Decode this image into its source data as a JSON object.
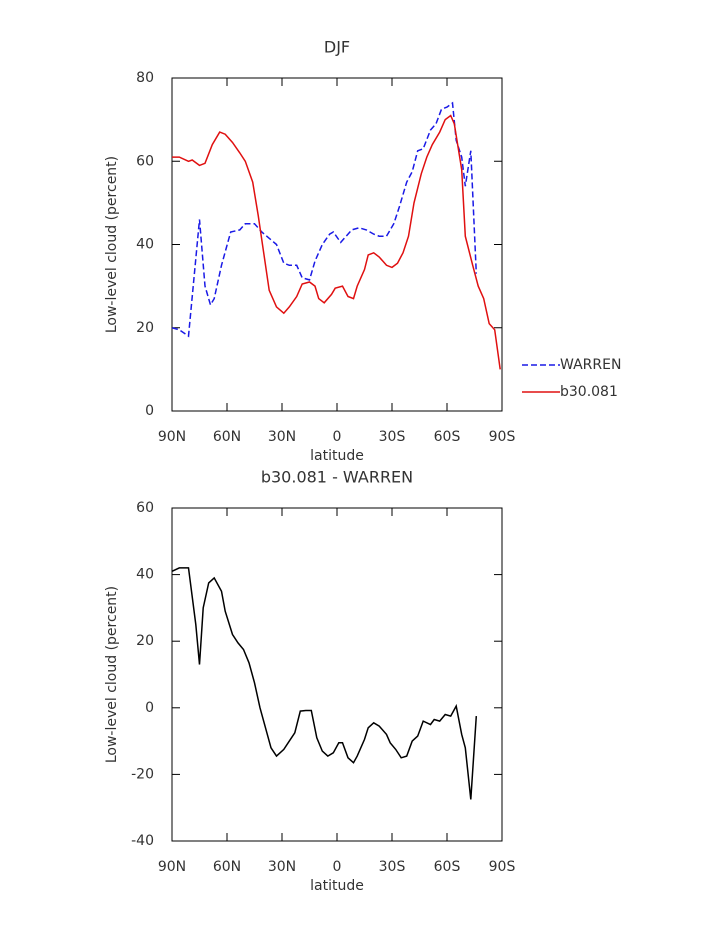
{
  "chart_data": [
    {
      "type": "line",
      "title": "DJF",
      "xlabel": "latitude",
      "ylabel": "Low-level cloud (percent)",
      "xlim": [
        90,
        -90
      ],
      "xticks": [
        {
          "value": 90,
          "label": "90N"
        },
        {
          "value": 60,
          "label": "60N"
        },
        {
          "value": 30,
          "label": "30N"
        },
        0,
        {
          "value": -30,
          "label": "30S"
        },
        {
          "value": -60,
          "label": "60S"
        },
        {
          "value": -90,
          "label": "90S"
        }
      ],
      "ylim": [
        0,
        80
      ],
      "yticks": [
        0,
        20,
        40,
        60,
        80
      ],
      "grid": false,
      "legend": "right",
      "series": [
        {
          "name": "WARREN",
          "color": "#1a1ae6",
          "style": "dashed",
          "x": [
            90,
            86,
            81,
            75,
            72,
            69,
            67,
            63,
            58,
            53,
            50,
            45,
            41,
            37,
            33,
            29,
            26,
            22,
            19,
            15,
            12,
            8,
            4,
            2,
            -2,
            -4,
            -8,
            -12,
            -16,
            -20,
            -23,
            -27,
            -31,
            -34,
            -38,
            -41,
            -44,
            -47,
            -51,
            -54,
            -57,
            -60,
            -63,
            -65,
            -68,
            -70,
            -73,
            -76
          ],
          "values": [
            20,
            19.5,
            18,
            46,
            30,
            25.5,
            27,
            35,
            43,
            43.5,
            45,
            45,
            43,
            41.5,
            40,
            35.5,
            35,
            35,
            32,
            31.5,
            36,
            40,
            42.5,
            43,
            40.5,
            41.5,
            43.5,
            44,
            43.5,
            42.5,
            42,
            42,
            45,
            49,
            55,
            57.5,
            62.5,
            63,
            67.5,
            69,
            72.5,
            73,
            74,
            65,
            61,
            54,
            62.5,
            33
          ]
        },
        {
          "name": "b30.081",
          "color": "#e01010",
          "style": "solid",
          "x": [
            90,
            86,
            81,
            79,
            75,
            72,
            68,
            64,
            61,
            57,
            53,
            50,
            46,
            43,
            40,
            37,
            33,
            29,
            26,
            22,
            19,
            15,
            12,
            10,
            7,
            3,
            1,
            -3,
            -6,
            -9,
            -11,
            -15,
            -17,
            -20,
            -23,
            -27,
            -30,
            -33,
            -36,
            -39,
            -42,
            -46,
            -49,
            -52,
            -56,
            -59,
            -62,
            -64,
            -68,
            -70,
            -74,
            -77,
            -80,
            -83,
            -86,
            -89
          ],
          "values": [
            61,
            61,
            60,
            60.3,
            59,
            59.5,
            64,
            67,
            66.5,
            64.5,
            62,
            60,
            55,
            47,
            38,
            29,
            25,
            23.5,
            25,
            27.5,
            30.5,
            31,
            30,
            27,
            26,
            28,
            29.5,
            30,
            27.5,
            27,
            30,
            34,
            37.5,
            38,
            37,
            35,
            34.5,
            35.5,
            38,
            42,
            50,
            57,
            61,
            64,
            67,
            70,
            71,
            69,
            58,
            42,
            35,
            30,
            27,
            21,
            19.5,
            10
          ]
        }
      ]
    },
    {
      "type": "line",
      "title": "b30.081 - WARREN",
      "xlabel": "latitude",
      "ylabel": "Low-level cloud (percent)",
      "xlim": [
        90,
        -90
      ],
      "xticks": [
        {
          "value": 90,
          "label": "90N"
        },
        {
          "value": 60,
          "label": "60N"
        },
        {
          "value": 30,
          "label": "30N"
        },
        0,
        {
          "value": -30,
          "label": "30S"
        },
        {
          "value": -60,
          "label": "60S"
        },
        {
          "value": -90,
          "label": "90S"
        }
      ],
      "ylim": [
        -40,
        60
      ],
      "yticks": [
        -40,
        -20,
        0,
        20,
        40,
        60
      ],
      "grid": false,
      "series": [
        {
          "color": "#000000",
          "style": "solid",
          "x": [
            90,
            86,
            81,
            77,
            75,
            73,
            70,
            67,
            63,
            61,
            57,
            54,
            51,
            48,
            45,
            42,
            39,
            36,
            33,
            29,
            26,
            23,
            20,
            17,
            14,
            11,
            8,
            5,
            2,
            -1,
            -3,
            -6,
            -9,
            -11,
            -15,
            -17,
            -20,
            -23,
            -27,
            -29,
            -32,
            -35,
            -38,
            -41,
            -44,
            -47,
            -51,
            -53,
            -56,
            -59,
            -62,
            -65,
            -68,
            -70,
            -73,
            -76
          ],
          "values": [
            41,
            42,
            42,
            25,
            13,
            30,
            37.5,
            39,
            35,
            29,
            22,
            19.5,
            17.5,
            13.5,
            7.5,
            0,
            -6,
            -12,
            -14.5,
            -12.5,
            -10,
            -7.5,
            -1,
            -0.8,
            -0.8,
            -9,
            -13,
            -14.5,
            -13.5,
            -10.5,
            -10.5,
            -15,
            -16.5,
            -14.5,
            -9.5,
            -6,
            -4.5,
            -5.5,
            -8,
            -10.5,
            -12.5,
            -15,
            -14.5,
            -10,
            -8.5,
            -4,
            -5,
            -3.5,
            -4,
            -2,
            -2.5,
            0.5,
            -8,
            -12,
            -27.5,
            -2.5
          ]
        }
      ]
    }
  ]
}
